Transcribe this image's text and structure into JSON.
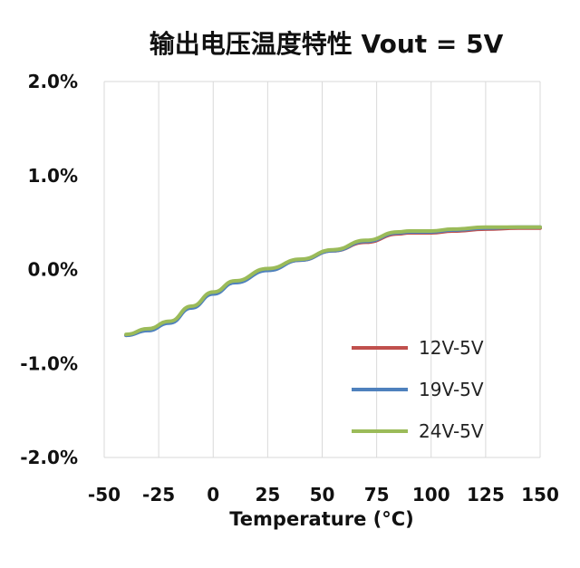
{
  "chart_data": {
    "type": "line",
    "title": "输出电压温度特性 Vout = 5V",
    "xlabel": "Temperature (°C)",
    "ylabel": "",
    "xlim": [
      -50,
      150
    ],
    "ylim": [
      -2.0,
      2.0
    ],
    "x_ticks": [
      "-50",
      "-25",
      "0",
      "25",
      "50",
      "75",
      "100",
      "125",
      "150"
    ],
    "y_ticks": [
      "2.0%",
      "1.0%",
      "0.0%",
      "-1.0%",
      "-2.0%"
    ],
    "grid": "vertical",
    "legend_position": "bottom-right",
    "series": [
      {
        "name": "12V-5V",
        "color": "#c0504d",
        "x": [
          -40,
          -30,
          -20,
          -10,
          0,
          10,
          25,
          40,
          55,
          70,
          85,
          90,
          100,
          110,
          125,
          140,
          150
        ],
        "y": [
          -0.7,
          -0.64,
          -0.56,
          -0.4,
          -0.25,
          -0.13,
          0.0,
          0.1,
          0.2,
          0.29,
          0.38,
          0.39,
          0.39,
          0.41,
          0.43,
          0.44,
          0.44
        ]
      },
      {
        "name": "19V-5V",
        "color": "#4f81bd",
        "x": [
          -40,
          -30,
          -20,
          -10,
          0,
          10,
          25,
          40,
          55,
          70,
          85,
          90,
          100,
          110,
          125,
          140,
          150
        ],
        "y": [
          -0.7,
          -0.65,
          -0.57,
          -0.41,
          -0.26,
          -0.14,
          -0.01,
          0.1,
          0.2,
          0.3,
          0.39,
          0.4,
          0.4,
          0.42,
          0.44,
          0.45,
          0.45
        ]
      },
      {
        "name": "24V-5V",
        "color": "#9bbb59",
        "x": [
          -40,
          -30,
          -20,
          -10,
          0,
          10,
          25,
          40,
          55,
          70,
          85,
          90,
          100,
          110,
          125,
          140,
          150
        ],
        "y": [
          -0.69,
          -0.63,
          -0.55,
          -0.39,
          -0.24,
          -0.12,
          0.01,
          0.11,
          0.21,
          0.31,
          0.4,
          0.41,
          0.41,
          0.43,
          0.45,
          0.45,
          0.45
        ]
      }
    ]
  }
}
